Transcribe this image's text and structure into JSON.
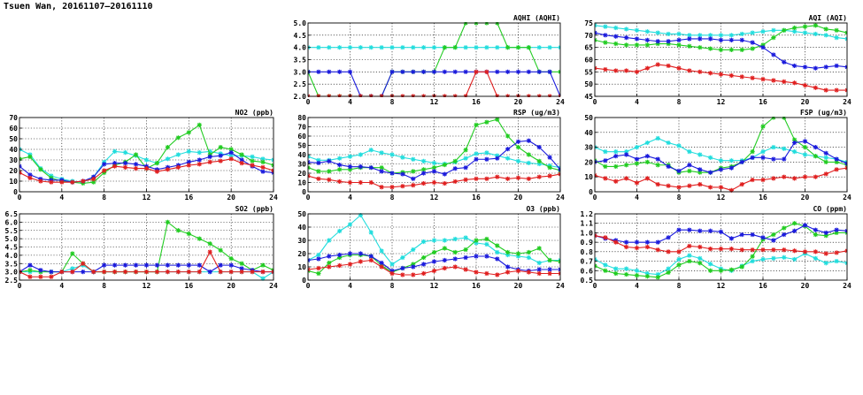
{
  "page": {
    "title": "Tsuen Wan, 20161107—20161110"
  },
  "series_colors": {
    "green": "#22cc22",
    "red": "#e02020",
    "cyan": "#22dddd",
    "blue": "#1a1adc"
  },
  "chart_data": [
    {
      "id": "aqhi",
      "type": "line",
      "title": "AQHI (AQHI)",
      "xlim": [
        0,
        24
      ],
      "xticks": [
        0,
        4,
        8,
        12,
        16,
        20,
        24
      ],
      "ylim": [
        2.0,
        5.0
      ],
      "yticks": [
        "2.0",
        "2.5",
        "3.0",
        "3.5",
        "4.0",
        "4.5",
        "5.0"
      ],
      "grid": true,
      "series": [
        {
          "color": "cyan",
          "values": [
            4,
            4,
            4,
            4,
            4,
            4,
            4,
            4,
            4,
            4,
            4,
            4,
            4,
            4,
            4,
            4,
            4,
            4,
            4,
            4,
            4,
            4,
            4,
            4,
            4
          ]
        },
        {
          "color": "green",
          "values": [
            3,
            2,
            2,
            2,
            2,
            2,
            2,
            2,
            3,
            3,
            3,
            3,
            3,
            4,
            4,
            5,
            5,
            5,
            5,
            4,
            4,
            4,
            3,
            3,
            3
          ]
        },
        {
          "color": "blue",
          "values": [
            3,
            3,
            3,
            3,
            3,
            2,
            2,
            2,
            3,
            3,
            3,
            3,
            3,
            3,
            3,
            3,
            3,
            3,
            3,
            3,
            3,
            3,
            3,
            3,
            2
          ]
        },
        {
          "color": "red",
          "values": [
            2,
            2,
            2,
            2,
            2,
            2,
            2,
            2,
            2,
            2,
            2,
            2,
            2,
            2,
            2,
            2,
            3,
            3,
            2,
            2,
            2,
            2,
            2,
            2,
            2
          ]
        }
      ]
    },
    {
      "id": "aqi",
      "type": "line",
      "title": "AQI (AQI)",
      "xlim": [
        0,
        24
      ],
      "xticks": [
        0,
        4,
        8,
        12,
        16,
        20,
        24
      ],
      "ylim": [
        45,
        75
      ],
      "yticks": [
        "45",
        "50",
        "55",
        "60",
        "65",
        "70",
        "75"
      ],
      "grid": true,
      "series": [
        {
          "color": "cyan",
          "values": [
            74,
            73.5,
            73,
            72.5,
            72,
            71.5,
            71,
            70.5,
            70.5,
            70,
            70,
            70,
            70,
            70,
            70.5,
            71,
            71.5,
            72,
            72,
            71.5,
            71,
            70.5,
            70,
            69,
            68.5
          ]
        },
        {
          "color": "green",
          "values": [
            68,
            67,
            66.5,
            66,
            66,
            66,
            66.5,
            66.5,
            66,
            65.5,
            65,
            64.5,
            64,
            64,
            64,
            64.5,
            66,
            69,
            72,
            73,
            73.5,
            74,
            72.5,
            72,
            71
          ]
        },
        {
          "color": "blue",
          "values": [
            71,
            70,
            69.5,
            69,
            68.5,
            68,
            67.5,
            67.5,
            68,
            68.5,
            68.5,
            68.5,
            68,
            68,
            68,
            67,
            65,
            62,
            59,
            57.5,
            57,
            56.5,
            57,
            57.5,
            57
          ]
        },
        {
          "color": "red",
          "values": [
            56.5,
            56,
            55.5,
            55.5,
            55,
            56.5,
            58,
            57.5,
            56.5,
            55.5,
            55,
            54.5,
            54,
            53.5,
            53,
            52.5,
            52,
            51.5,
            51,
            50.5,
            49.5,
            48.5,
            47.5,
            47.5,
            47.5
          ]
        }
      ]
    },
    {
      "id": "no2",
      "type": "line",
      "title": "NO2 (ppb)",
      "xlim": [
        0,
        24
      ],
      "xticks": [
        0,
        4,
        8,
        12,
        16,
        20,
        24
      ],
      "ylim": [
        0,
        70
      ],
      "yticks": [
        "0",
        "10",
        "20",
        "30",
        "40",
        "50",
        "60",
        "70"
      ],
      "grid": true,
      "series": [
        {
          "color": "cyan",
          "values": [
            40,
            35,
            22,
            15,
            12,
            10,
            9,
            14,
            28,
            38,
            37,
            34,
            30,
            27,
            31,
            35,
            38,
            37,
            38,
            36,
            34,
            34,
            33,
            31,
            30
          ]
        },
        {
          "color": "green",
          "values": [
            31,
            33,
            21,
            13,
            10,
            9,
            8,
            9,
            18,
            25,
            28,
            35,
            22,
            27,
            42,
            51,
            56,
            63,
            35,
            42,
            40,
            35,
            29,
            28,
            25
          ]
        },
        {
          "color": "blue",
          "values": [
            24,
            16,
            12,
            11,
            11,
            9,
            10,
            14,
            26,
            27,
            27,
            26,
            24,
            21,
            23,
            25,
            28,
            30,
            33,
            34,
            37,
            30,
            24,
            19,
            18
          ]
        },
        {
          "color": "red",
          "values": [
            18,
            13,
            10,
            9,
            9,
            9,
            10,
            12,
            20,
            24,
            23,
            22,
            22,
            19,
            21,
            23,
            25,
            26,
            28,
            29,
            31,
            27,
            25,
            23,
            20
          ]
        }
      ]
    },
    {
      "id": "rsp",
      "type": "line",
      "title": "RSP (ug/m3)",
      "xlim": [
        0,
        24
      ],
      "xticks": [
        0,
        4,
        8,
        12,
        16,
        20,
        24
      ],
      "ylim": [
        0,
        80
      ],
      "yticks": [
        "0",
        "10",
        "20",
        "30",
        "40",
        "50",
        "60",
        "70",
        "80"
      ],
      "grid": true,
      "series": [
        {
          "color": "cyan",
          "values": [
            38,
            34,
            34,
            36,
            38,
            40,
            45,
            42,
            40,
            37,
            35,
            33,
            31,
            30,
            32,
            36,
            41,
            42,
            39,
            36,
            33,
            31,
            30,
            28,
            26
          ]
        },
        {
          "color": "green",
          "values": [
            26,
            22,
            22,
            24,
            24,
            26,
            26,
            26,
            20,
            21,
            22,
            24,
            26,
            29,
            33,
            45,
            72,
            75,
            78,
            60,
            48,
            40,
            33,
            26,
            23
          ]
        },
        {
          "color": "blue",
          "values": [
            32,
            31,
            33,
            29,
            27,
            27,
            26,
            22,
            20,
            19,
            14,
            20,
            22,
            19,
            25,
            26,
            35,
            35,
            36,
            46,
            54,
            55,
            48,
            37,
            24
          ]
        },
        {
          "color": "red",
          "values": [
            17,
            14,
            13,
            11,
            10,
            10,
            10,
            5,
            5,
            6,
            7,
            9,
            10,
            9,
            11,
            13,
            14,
            14,
            16,
            14,
            15,
            14,
            16,
            17,
            19
          ]
        }
      ]
    },
    {
      "id": "fsp",
      "type": "line",
      "title": "FSP (ug/m3)",
      "xlim": [
        0,
        24
      ],
      "xticks": [
        0,
        4,
        8,
        12,
        16,
        20,
        24
      ],
      "ylim": [
        0,
        50
      ],
      "yticks": [
        "0",
        "10",
        "20",
        "30",
        "40",
        "50"
      ],
      "grid": true,
      "series": [
        {
          "color": "cyan",
          "values": [
            30,
            27,
            27,
            27,
            30,
            33,
            36,
            33,
            31,
            27,
            25,
            23,
            21,
            21,
            21,
            23,
            27,
            30,
            29,
            27,
            25,
            24,
            23,
            22,
            20
          ]
        },
        {
          "color": "green",
          "values": [
            21,
            17,
            17,
            18,
            19,
            20,
            18,
            18,
            13,
            14,
            13,
            13,
            16,
            17,
            20,
            27,
            44,
            50,
            50,
            35,
            30,
            24,
            20,
            20,
            18
          ]
        },
        {
          "color": "blue",
          "values": [
            20,
            21,
            24,
            25,
            22,
            24,
            22,
            17,
            14,
            18,
            15,
            13,
            15,
            16,
            20,
            23,
            23,
            22,
            22,
            33,
            34,
            30,
            26,
            22,
            19
          ]
        },
        {
          "color": "red",
          "values": [
            11,
            9,
            7,
            9,
            6,
            9,
            5,
            4,
            3,
            4,
            5,
            3,
            3,
            1,
            5,
            8,
            8,
            9,
            10,
            9,
            10,
            10,
            12,
            15,
            16
          ]
        }
      ]
    },
    {
      "id": "so2",
      "type": "line",
      "title": "SO2 (ppb)",
      "xlim": [
        0,
        24
      ],
      "xticks": [
        0,
        4,
        8,
        12,
        16,
        20,
        24
      ],
      "ylim": [
        2.5,
        6.5
      ],
      "yticks": [
        "2.5",
        "3.0",
        "3.5",
        "4.0",
        "4.5",
        "5.0",
        "5.5",
        "6.0",
        "6.5"
      ],
      "grid": true,
      "series": [
        {
          "color": "cyan",
          "values": [
            3.0,
            3.0,
            3.0,
            3.0,
            3.0,
            3.2,
            3.4,
            3.0,
            3.0,
            3.0,
            3.0,
            3.0,
            3.0,
            3.0,
            3.0,
            3.0,
            3.0,
            3.0,
            3.0,
            3.0,
            3.0,
            3.0,
            3.0,
            2.6,
            3.0
          ]
        },
        {
          "color": "green",
          "values": [
            3.0,
            3.1,
            3.0,
            3.0,
            3.0,
            4.1,
            3.5,
            3.0,
            3.0,
            3.0,
            3.0,
            3.0,
            3.0,
            3.0,
            6.0,
            5.5,
            5.3,
            5.0,
            4.7,
            4.3,
            3.8,
            3.5,
            3.1,
            3.4,
            3.1
          ]
        },
        {
          "color": "blue",
          "values": [
            3.0,
            3.4,
            3.1,
            3.0,
            3.0,
            3.0,
            3.0,
            3.0,
            3.4,
            3.4,
            3.4,
            3.4,
            3.4,
            3.4,
            3.4,
            3.4,
            3.4,
            3.4,
            3.0,
            3.4,
            3.4,
            3.2,
            3.1,
            3.0,
            3.0
          ]
        },
        {
          "color": "red",
          "values": [
            3.0,
            2.7,
            2.7,
            2.7,
            3.0,
            3.0,
            3.5,
            3.0,
            3.0,
            3.0,
            3.0,
            3.0,
            3.0,
            3.0,
            3.0,
            3.0,
            3.0,
            3.0,
            4.2,
            3.0,
            3.0,
            3.0,
            3.0,
            3.0,
            3.0
          ]
        }
      ]
    },
    {
      "id": "o3",
      "type": "line",
      "title": "O3 (ppb)",
      "xlim": [
        0,
        24
      ],
      "xticks": [
        0,
        4,
        8,
        12,
        16,
        20,
        24
      ],
      "ylim": [
        0,
        50
      ],
      "yticks": [
        "0",
        "10",
        "20",
        "30",
        "40",
        "50"
      ],
      "grid": true,
      "series": [
        {
          "color": "cyan",
          "values": [
            15,
            19,
            30,
            37,
            42,
            49,
            36,
            22,
            12,
            17,
            23,
            29,
            30,
            30,
            31,
            32,
            28,
            27,
            21,
            19,
            18,
            17,
            13,
            15,
            15
          ]
        },
        {
          "color": "green",
          "values": [
            7,
            5,
            13,
            17,
            19,
            19,
            18,
            11,
            6,
            9,
            12,
            17,
            21,
            24,
            21,
            23,
            30,
            31,
            26,
            21,
            20,
            21,
            24,
            15,
            14
          ]
        },
        {
          "color": "blue",
          "values": [
            15,
            16,
            18,
            19,
            20,
            20,
            18,
            13,
            7,
            9,
            10,
            12,
            14,
            15,
            16,
            17,
            18,
            18,
            16,
            10,
            8,
            7,
            8,
            8,
            8
          ]
        },
        {
          "color": "red",
          "values": [
            8,
            9,
            10,
            11,
            12,
            14,
            15,
            10,
            5,
            4,
            4,
            5,
            7,
            9,
            10,
            8,
            6,
            5,
            4,
            6,
            7,
            6,
            5,
            5,
            5
          ]
        }
      ]
    },
    {
      "id": "co",
      "type": "line",
      "title": "CO (ppm)",
      "xlim": [
        0,
        24
      ],
      "xticks": [
        0,
        4,
        8,
        12,
        16,
        20,
        24
      ],
      "ylim": [
        0.5,
        1.2
      ],
      "yticks": [
        "0.5",
        "0.6",
        "0.7",
        "0.8",
        "0.9",
        "1.0",
        "1.1",
        "1.2"
      ],
      "grid": true,
      "series": [
        {
          "color": "cyan",
          "values": [
            0.72,
            0.66,
            0.62,
            0.62,
            0.6,
            0.57,
            0.56,
            0.62,
            0.72,
            0.76,
            0.73,
            0.67,
            0.62,
            0.6,
            0.65,
            0.7,
            0.72,
            0.73,
            0.74,
            0.72,
            0.78,
            0.73,
            0.68,
            0.7,
            0.68
          ]
        },
        {
          "color": "green",
          "values": [
            0.65,
            0.6,
            0.57,
            0.56,
            0.55,
            0.54,
            0.53,
            0.58,
            0.66,
            0.7,
            0.68,
            0.6,
            0.6,
            0.61,
            0.64,
            0.75,
            0.93,
            0.98,
            1.05,
            1.1,
            1.07,
            0.98,
            0.97,
            1.0,
            1.0
          ]
        },
        {
          "color": "blue",
          "values": [
            0.97,
            0.94,
            0.92,
            0.9,
            0.9,
            0.9,
            0.9,
            0.95,
            1.03,
            1.03,
            1.02,
            1.02,
            1.01,
            0.94,
            0.98,
            0.98,
            0.95,
            0.92,
            0.98,
            1.02,
            1.08,
            1.03,
            1.0,
            1.03,
            1.02
          ]
        },
        {
          "color": "red",
          "values": [
            0.97,
            0.95,
            0.9,
            0.85,
            0.84,
            0.85,
            0.82,
            0.8,
            0.8,
            0.86,
            0.85,
            0.83,
            0.83,
            0.83,
            0.82,
            0.82,
            0.82,
            0.82,
            0.82,
            0.81,
            0.8,
            0.8,
            0.78,
            0.79,
            0.81
          ]
        }
      ]
    }
  ]
}
